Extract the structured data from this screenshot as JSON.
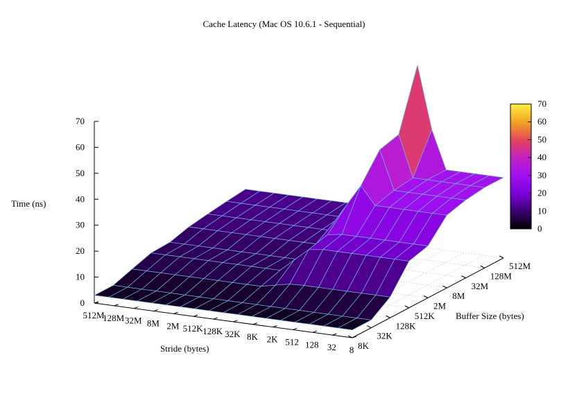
{
  "chart_data": {
    "type": "surface3d",
    "title": "Cache Latency (Mac OS 10.6.1 - Sequential)",
    "zlabel": "Time (ns)",
    "xlabel": "Stride (bytes)",
    "ylabel": "Buffer Size (bytes)",
    "zlim": [
      0,
      70
    ],
    "z_ticks": [
      0,
      10,
      20,
      30,
      40,
      50,
      60,
      70
    ],
    "stride_ticks": [
      "512M",
      "128M",
      "32M",
      "8M",
      "2M",
      "512K",
      "128K",
      "32K",
      "8K",
      "2K",
      "512",
      "128",
      "32",
      "8"
    ],
    "buffer_ticks": [
      "8K",
      "32K",
      "128K",
      "512K",
      "2M",
      "8M",
      "32M",
      "128M",
      "512M"
    ],
    "colorbar": {
      "range": [
        0,
        70
      ],
      "ticks": [
        0,
        10,
        20,
        30,
        40,
        50,
        60,
        70
      ],
      "palette": [
        "#000000",
        "#3a0070",
        "#7a00d8",
        "#a010f0",
        "#c020c8",
        "#e04060",
        "#f0a020",
        "#fff040"
      ]
    },
    "grid": true,
    "buffer_levels": [
      {
        "buffer": "8K",
        "floor": 3,
        "plateau": 3,
        "peak": 3
      },
      {
        "buffer": "32K",
        "floor": 3,
        "plateau": 3,
        "peak": 3
      },
      {
        "buffer": "128K",
        "floor": 5,
        "plateau": 8,
        "peak": 8
      },
      {
        "buffer": "512K",
        "floor": 6,
        "plateau": 18,
        "peak": 19
      },
      {
        "buffer": "2M",
        "floor": 6,
        "plateau": 20,
        "peak": 21
      },
      {
        "buffer": "8M",
        "floor": 7,
        "plateau": 28,
        "peak": 35
      },
      {
        "buffer": "32M",
        "floor": 8,
        "plateau": 30,
        "peak": 45
      },
      {
        "buffer": "128M",
        "floor": 9,
        "plateau": 31,
        "peak": 47
      },
      {
        "buffer": "512M",
        "floor": 10,
        "plateau": 31,
        "peak": 70
      }
    ]
  }
}
